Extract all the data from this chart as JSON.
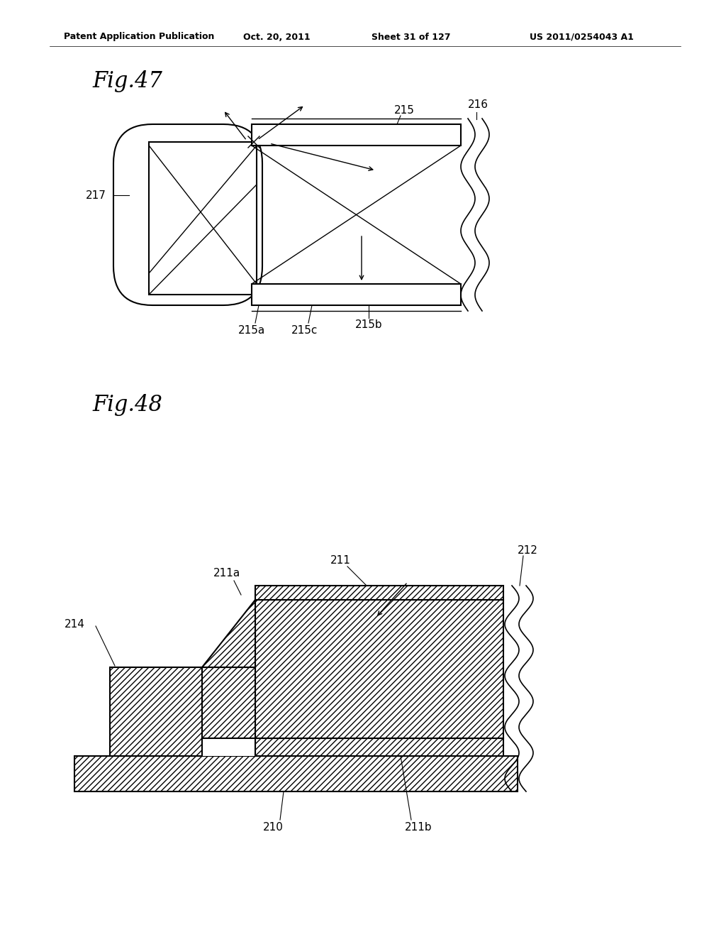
{
  "background_color": "#ffffff",
  "header_text": "Patent Application Publication",
  "header_date": "Oct. 20, 2011",
  "header_sheet": "Sheet 31 of 127",
  "header_patent": "US 2011/0254043 A1",
  "fig47_title": "Fig.47",
  "fig48_title": "Fig.48"
}
